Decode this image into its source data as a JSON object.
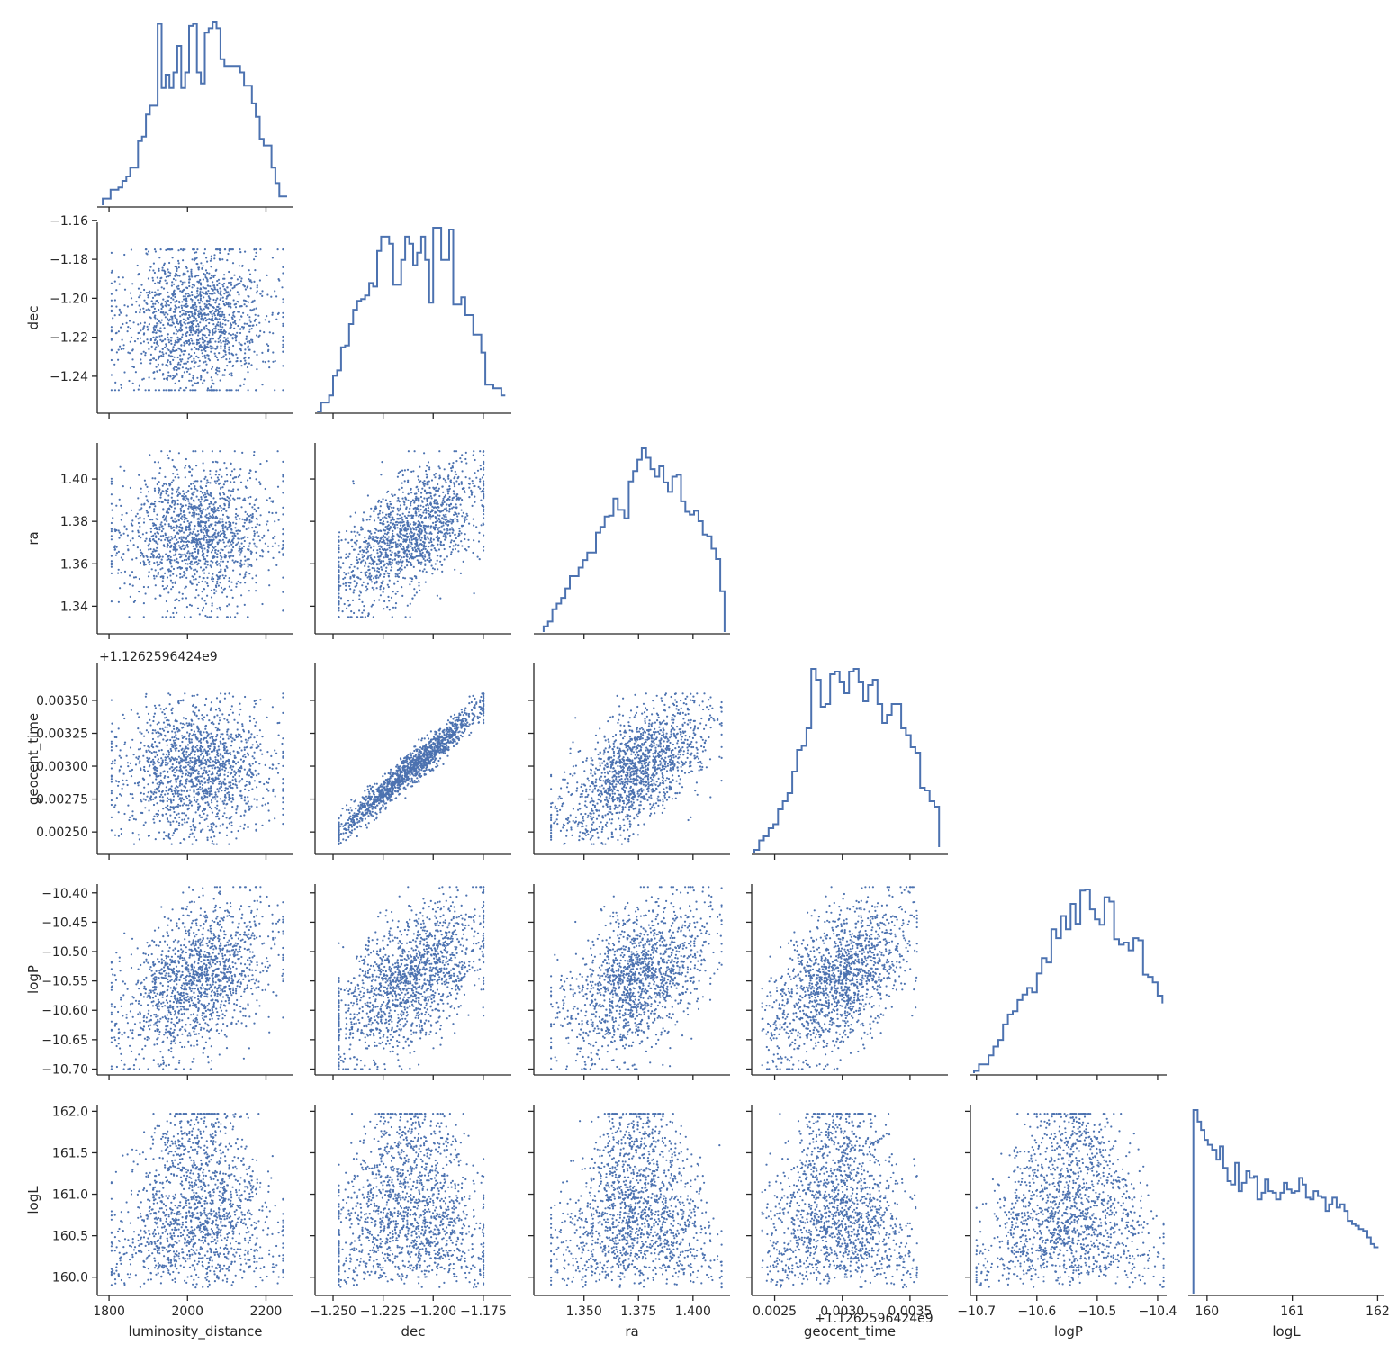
{
  "chart_data": {
    "type": "scatter",
    "subtype": "corner-pairplot-lower-triangle",
    "variables": [
      "luminosity_distance",
      "dec",
      "ra",
      "geocent_time",
      "logP",
      "logL"
    ],
    "axis_labels": {
      "luminosity_distance": "luminosity_distance",
      "dec": "dec",
      "ra": "ra",
      "geocent_time": "geocent_time",
      "logP": "logP",
      "logL": "logL"
    },
    "ranges": {
      "luminosity_distance": [
        1770,
        2270
      ],
      "dec": [
        -1.259,
        -1.161
      ],
      "ra": [
        1.327,
        1.417
      ],
      "geocent_time": [
        0.00233,
        0.00378
      ],
      "logP": [
        -10.71,
        -10.385
      ],
      "logL": [
        159.78,
        162.08
      ]
    },
    "ticks": {
      "luminosity_distance": [
        1800,
        2000,
        2200
      ],
      "dec": [
        -1.25,
        -1.225,
        -1.2,
        -1.175
      ],
      "ra": [
        1.35,
        1.375,
        1.4
      ],
      "geocent_time": [
        0.0025,
        0.003,
        0.0035
      ],
      "logP": [
        -10.7,
        -10.6,
        -10.5,
        -10.4
      ],
      "logL": [
        160,
        161,
        162
      ]
    },
    "tick_labels": {
      "luminosity_distance": [
        "1800",
        "2000",
        "2200"
      ],
      "dec": [
        "−1.250",
        "−1.225",
        "−1.200",
        "−1.175"
      ],
      "ra": [
        "1.350",
        "1.375",
        "1.400"
      ],
      "geocent_time": [
        "0.0025",
        "0.0030",
        "0.0035"
      ],
      "logP": [
        "−10.7",
        "−10.6",
        "−10.5",
        "−10.4"
      ],
      "logL": [
        "160",
        "161",
        "162"
      ]
    },
    "y_ticks": {
      "dec": [
        -1.16,
        -1.18,
        -1.2,
        -1.22,
        -1.24
      ],
      "ra": [
        1.4,
        1.38,
        1.36,
        1.34
      ],
      "geocent_time": [
        0.0035,
        0.00325,
        0.003,
        0.00275,
        0.0025
      ],
      "logP": [
        -10.4,
        -10.45,
        -10.5,
        -10.55,
        -10.6,
        -10.65,
        -10.7
      ],
      "logL": [
        162,
        161.5,
        161,
        160.5,
        160
      ]
    },
    "y_tick_labels": {
      "dec": [
        "−1.16",
        "−1.18",
        "−1.20",
        "−1.22",
        "−1.24"
      ],
      "ra": [
        "1.40",
        "1.38",
        "1.36",
        "1.34"
      ],
      "geocent_time": [
        "0.00350",
        "0.00325",
        "0.00300",
        "0.00275",
        "0.00250"
      ],
      "logP": [
        "−10.40",
        "−10.45",
        "−10.50",
        "−10.55",
        "−10.60",
        "−10.65",
        "−10.70"
      ],
      "logL": [
        "162.0",
        "161.5",
        "161.0",
        "160.5",
        "160.0"
      ]
    },
    "offset_text": "+1.1262596424e9",
    "series_color": "#4c72b0",
    "marginal_histograms": {
      "luminosity_distance": {
        "bins": [
          1784,
          1794,
          1804,
          1814,
          1824,
          1834,
          1844,
          1854,
          1864,
          1874,
          1884,
          1894,
          1904,
          1914,
          1924,
          1934,
          1944,
          1954,
          1964,
          1974,
          1984,
          1994,
          2004,
          2014,
          2024,
          2034,
          2044,
          2054,
          2064,
          2074,
          2084,
          2094,
          2104,
          2114,
          2124,
          2134,
          2144,
          2154,
          2164,
          2174,
          2184,
          2194,
          2204,
          2214,
          2224,
          2234,
          2244,
          2254
        ],
        "heights": [
          3,
          3,
          7,
          7,
          8,
          11,
          13,
          17,
          17,
          29,
          31,
          41,
          45,
          45,
          82,
          53,
          59,
          53,
          60,
          72,
          53,
          60,
          81,
          82,
          60,
          55,
          78,
          80,
          83,
          80,
          66,
          63,
          63,
          63,
          63,
          60,
          54,
          54,
          46,
          40,
          30,
          27,
          27,
          17,
          10,
          4,
          4
        ]
      },
      "dec": {
        "bins": [
          -1.258,
          -1.256,
          -1.254,
          -1.252,
          -1.25,
          -1.248,
          -1.246,
          -1.244,
          -1.242,
          -1.24,
          -1.238,
          -1.236,
          -1.234,
          -1.232,
          -1.23,
          -1.228,
          -1.226,
          -1.224,
          -1.222,
          -1.22,
          -1.218,
          -1.216,
          -1.214,
          -1.212,
          -1.21,
          -1.208,
          -1.206,
          -1.204,
          -1.202,
          -1.2,
          -1.198,
          -1.196,
          -1.194,
          -1.192,
          -1.19,
          -1.188,
          -1.186,
          -1.184,
          -1.182,
          -1.18,
          -1.178,
          -1.176,
          -1.174,
          -1.172,
          -1.17,
          -1.168,
          -1.166,
          -1.164
        ],
        "heights": [
          0,
          5,
          5,
          9,
          20,
          23,
          36,
          37,
          49,
          57,
          62,
          63,
          65,
          72,
          70,
          90,
          98,
          98,
          94,
          71,
          71,
          85,
          98,
          94,
          82,
          89,
          98,
          85,
          61,
          103,
          103,
          85,
          85,
          102,
          60,
          60,
          64,
          54,
          54,
          43,
          43,
          33,
          15,
          15,
          13,
          13,
          9
        ]
      },
      "ra": {
        "bins": [
          1.3315,
          1.3335,
          1.3355,
          1.3375,
          1.3395,
          1.3415,
          1.3435,
          1.3455,
          1.3475,
          1.3495,
          1.3515,
          1.3535,
          1.3555,
          1.3575,
          1.3595,
          1.3615,
          1.3635,
          1.3655,
          1.3685,
          1.3705,
          1.3725,
          1.3745,
          1.3765,
          1.3785,
          1.3805,
          1.3825,
          1.3845,
          1.3865,
          1.3885,
          1.3905,
          1.3925,
          1.3945,
          1.3965,
          1.3985,
          1.4005,
          1.4025,
          1.4045,
          1.4065,
          1.4085,
          1.4105,
          1.4125,
          1.4145
        ],
        "heights": [
          6,
          11,
          24,
          30,
          36,
          46,
          59,
          59,
          68,
          76,
          84,
          84,
          105,
          111,
          122,
          123,
          141,
          129,
          120,
          159,
          170,
          182,
          194,
          184,
          172,
          164,
          175,
          158,
          148,
          164,
          166,
          138,
          127,
          124,
          128,
          117,
          103,
          101,
          88,
          77,
          43,
          0
        ]
      },
      "geocent_time": {
        "bins": [
          0.00235,
          0.002385,
          0.00242,
          0.002455,
          0.00249,
          0.002525,
          0.00256,
          0.002595,
          0.00263,
          0.002665,
          0.0027,
          0.002735,
          0.00277,
          0.002805,
          0.00284,
          0.002875,
          0.00291,
          0.002945,
          0.00298,
          0.003015,
          0.00305,
          0.003085,
          0.00312,
          0.003155,
          0.00319,
          0.003225,
          0.00326,
          0.003295,
          0.00333,
          0.003365,
          0.0034,
          0.003435,
          0.00347,
          0.003505,
          0.00354,
          0.003575,
          0.00361,
          0.003645,
          0.00368,
          0.003715
        ],
        "heights": [
          2,
          9,
          12,
          18,
          21,
          32,
          38,
          44,
          60,
          76,
          79,
          92,
          136,
          128,
          108,
          110,
          132,
          134,
          126,
          118,
          134,
          136,
          126,
          112,
          124,
          128,
          110,
          96,
          102,
          110,
          110,
          92,
          87,
          78,
          74,
          48,
          46,
          38,
          34,
          4
        ]
      },
      "logP": {
        "bins": [
          -10.704,
          -10.696,
          -10.688,
          -10.68,
          -10.672,
          -10.664,
          -10.656,
          -10.648,
          -10.64,
          -10.632,
          -10.624,
          -10.616,
          -10.608,
          -10.6,
          -10.592,
          -10.584,
          -10.576,
          -10.568,
          -10.56,
          -10.552,
          -10.544,
          -10.536,
          -10.528,
          -10.52,
          -10.512,
          -10.504,
          -10.496,
          -10.488,
          -10.48,
          -10.472,
          -10.464,
          -10.456,
          -10.448,
          -10.44,
          -10.432,
          -10.424,
          -10.416,
          -10.408,
          -10.4,
          -10.392
        ],
        "heights": [
          2,
          8,
          8,
          16,
          24,
          30,
          44,
          53,
          56,
          66,
          71,
          77,
          73,
          90,
          104,
          100,
          130,
          122,
          142,
          130,
          153,
          135,
          165,
          166,
          148,
          139,
          134,
          159,
          155,
          121,
          116,
          118,
          111,
          122,
          120,
          89,
          87,
          82,
          70,
          63
        ]
      },
      "logL": {
        "bins": [
          159.84,
          159.89,
          159.93,
          159.97,
          160.01,
          160.06,
          160.11,
          160.15,
          160.19,
          160.24,
          160.28,
          160.33,
          160.37,
          160.41,
          160.46,
          160.5,
          160.55,
          160.59,
          160.64,
          160.68,
          160.72,
          160.77,
          160.81,
          160.86,
          160.9,
          160.94,
          160.99,
          161.03,
          161.08,
          161.12,
          161.16,
          161.21,
          161.25,
          161.3,
          161.34,
          161.39,
          161.43,
          161.47,
          161.52,
          161.56,
          161.61,
          161.65,
          161.7,
          161.74,
          161.78,
          161.83,
          161.88,
          161.92,
          161.96,
          162.01
        ],
        "heights": [
          111,
          104,
          99,
          93,
          90,
          87,
          81,
          89,
          76,
          68,
          66,
          79,
          62,
          67,
          74,
          70,
          71,
          57,
          61,
          69,
          62,
          61,
          57,
          61,
          67,
          63,
          61,
          62,
          70,
          66,
          58,
          57,
          62,
          59,
          58,
          50,
          54,
          58,
          52,
          54,
          50,
          44,
          42,
          41,
          39,
          38,
          34,
          30,
          28
        ]
      }
    },
    "scatter_pairs": [
      {
        "x": "luminosity_distance",
        "y": "dec",
        "correlation": 0.0
      },
      {
        "x": "luminosity_distance",
        "y": "ra",
        "correlation": 0.0
      },
      {
        "x": "dec",
        "y": "ra",
        "correlation": 0.62
      },
      {
        "x": "luminosity_distance",
        "y": "geocent_time",
        "correlation": 0.0
      },
      {
        "x": "dec",
        "y": "geocent_time",
        "correlation": 0.97
      },
      {
        "x": "ra",
        "y": "geocent_time",
        "correlation": 0.6
      },
      {
        "x": "luminosity_distance",
        "y": "logP",
        "correlation": 0.5
      },
      {
        "x": "dec",
        "y": "logP",
        "correlation": 0.62
      },
      {
        "x": "ra",
        "y": "logP",
        "correlation": 0.45
      },
      {
        "x": "geocent_time",
        "y": "logP",
        "correlation": 0.6
      },
      {
        "x": "luminosity_distance",
        "y": "logL",
        "correlation": 0.0
      },
      {
        "x": "dec",
        "y": "logL",
        "correlation": 0.0
      },
      {
        "x": "ra",
        "y": "logL",
        "correlation": 0.0
      },
      {
        "x": "geocent_time",
        "y": "logL",
        "correlation": 0.0
      },
      {
        "x": "logP",
        "y": "logL",
        "correlation": 0.0
      }
    ],
    "point_count_per_panel": 1500,
    "grid": false,
    "legend": "none"
  }
}
